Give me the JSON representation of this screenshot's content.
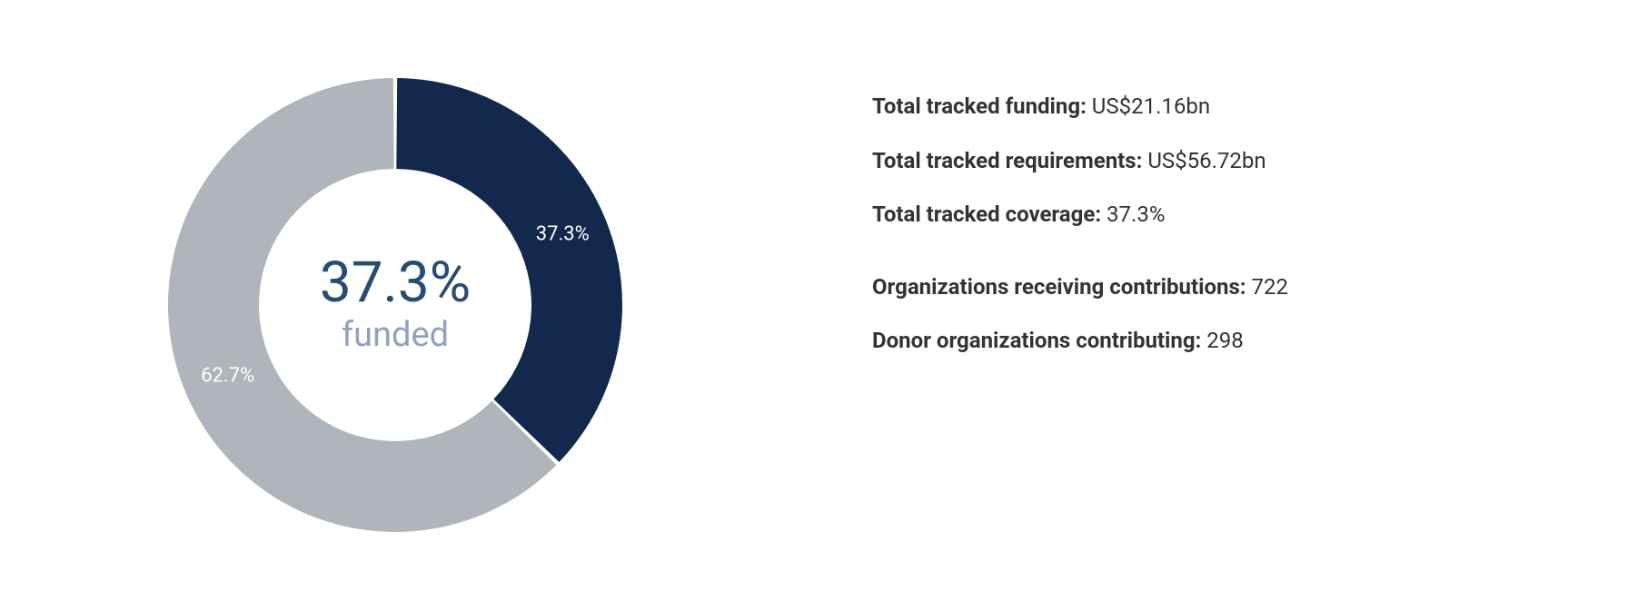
{
  "chart": {
    "type": "donut",
    "funded_pct": 37.3,
    "unfunded_pct": 62.7,
    "funded_label": "37.3%",
    "unfunded_label": "62.7%",
    "center_percent": "37.3%",
    "center_sub": "funded",
    "colors": {
      "funded": "#12294d",
      "unfunded": "#b0b5bb",
      "background": "#ffffff",
      "center_percent_text": "#264d73",
      "center_sub_text": "#8fa3bf",
      "slice_label_text": "#ffffff",
      "stats_text": "#333333"
    },
    "outer_radius": 250,
    "inner_radius": 150,
    "svg_viewbox": 530,
    "slice_gap_deg": 1.0,
    "center_percent_fontsize": 62,
    "center_sub_fontsize": 38,
    "slice_label_fontsize": 22,
    "stats_fontsize": 24
  },
  "stats": {
    "total_funding": {
      "label": "Total tracked funding:",
      "value": "US$21.16bn"
    },
    "total_requirements": {
      "label": "Total tracked requirements:",
      "value": "US$56.72bn"
    },
    "total_coverage": {
      "label": "Total tracked coverage:",
      "value": "37.3%"
    },
    "orgs_receiving": {
      "label": "Organizations receiving contributions:",
      "value": "722"
    },
    "donors_contributing": {
      "label": "Donor organizations contributing:",
      "value": "298"
    }
  }
}
